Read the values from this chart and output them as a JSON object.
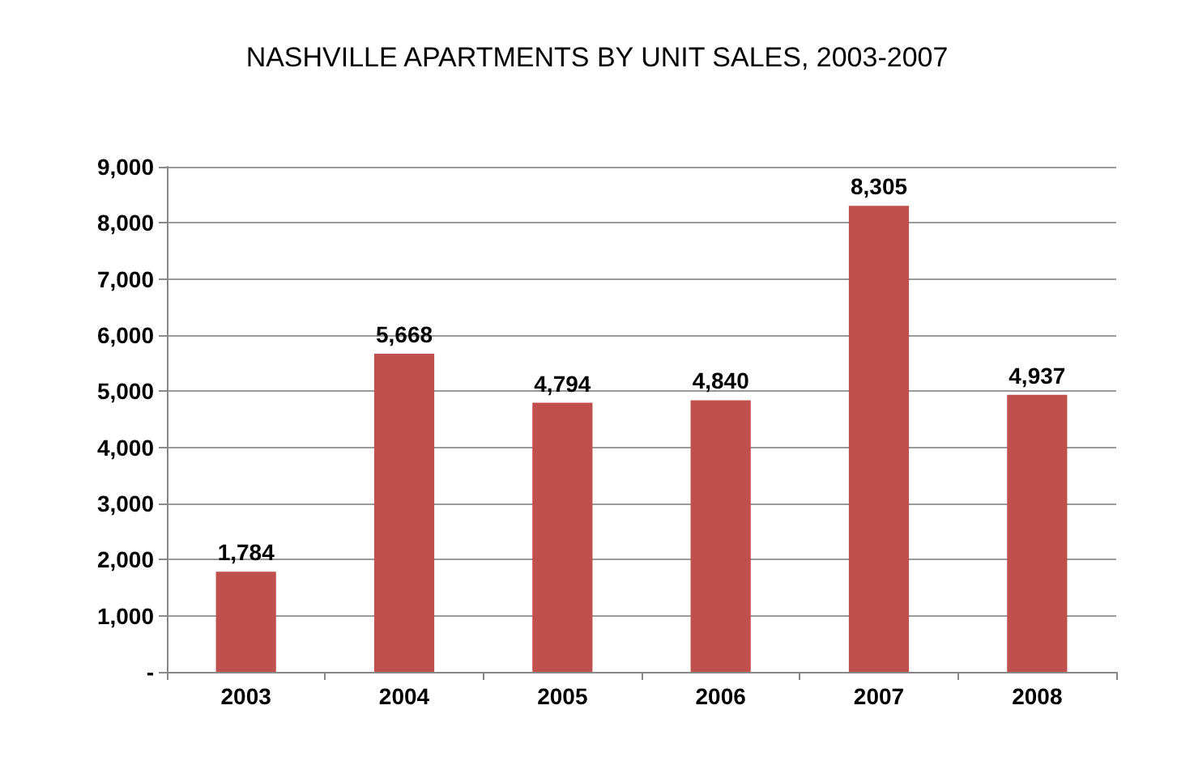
{
  "chart_data": {
    "type": "bar",
    "title": "NASHVILLE APARTMENTS BY UNIT SALES, 2003-2007",
    "categories": [
      "2003",
      "2004",
      "2005",
      "2006",
      "2007",
      "2008"
    ],
    "values": [
      1784,
      5668,
      4794,
      4840,
      8305,
      4937
    ],
    "value_labels": [
      "1,784",
      "5,668",
      "4,794",
      "4,840",
      "8,305",
      "4,937"
    ],
    "color": "#c0504d",
    "ylim": [
      0,
      9000
    ],
    "yticks": [
      {
        "value": 0,
        "label": "-"
      },
      {
        "value": 1000,
        "label": "1,000"
      },
      {
        "value": 2000,
        "label": "2,000"
      },
      {
        "value": 3000,
        "label": "3,000"
      },
      {
        "value": 4000,
        "label": "4,000"
      },
      {
        "value": 5000,
        "label": "5,000"
      },
      {
        "value": 6000,
        "label": "6,000"
      },
      {
        "value": 7000,
        "label": "7,000"
      },
      {
        "value": 8000,
        "label": "8,000"
      },
      {
        "value": 9000,
        "label": "9,000"
      }
    ],
    "grid": "y"
  }
}
